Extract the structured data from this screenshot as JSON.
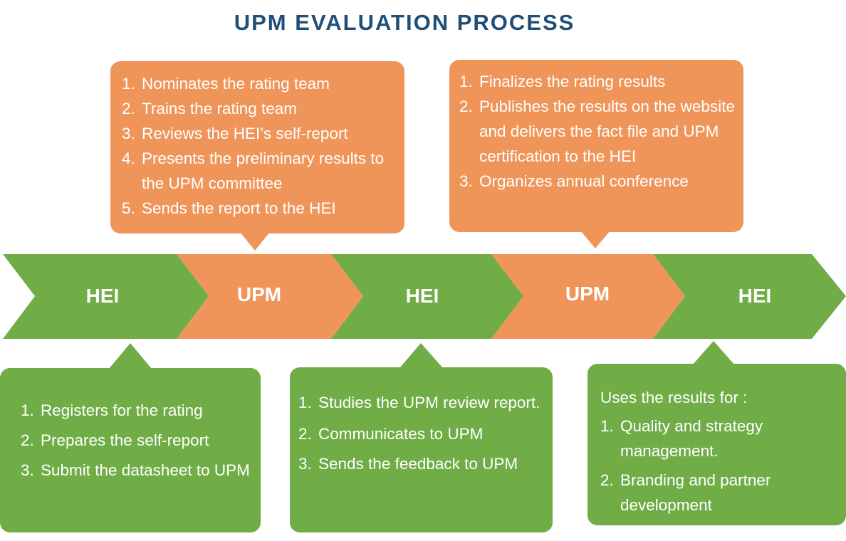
{
  "title": "UPM EVALUATION PROCESS",
  "colors": {
    "title": "#1f4e79",
    "green": "#70ad47",
    "orange": "#f0955a",
    "text": "#ffffff"
  },
  "steps": [
    {
      "label": "HEI",
      "color": "green"
    },
    {
      "label": "UPM",
      "color": "orange"
    },
    {
      "label": "HEI",
      "color": "green"
    },
    {
      "label": "UPM",
      "color": "orange"
    },
    {
      "label": "HEI",
      "color": "green"
    }
  ],
  "callouts": {
    "upm1": {
      "items": [
        "1. Nominates the rating team",
        "2. Trains the rating team",
        "3. Reviews the HEI’s self-report",
        "4. Presents the preliminary results to the UPM committee",
        "5. Sends the report to the HEI"
      ]
    },
    "upm2": {
      "items": [
        "1. Finalizes the rating results",
        "2. Publishes the results on the website and delivers the fact file and UPM certification to the HEI",
        "3. Organizes annual conference"
      ]
    },
    "hei1": {
      "items": [
        "1. Registers for the rating",
        "2. Prepares the self-report",
        "3. Submit the datasheet to UPM"
      ]
    },
    "hei2": {
      "items": [
        "1. Studies the UPM review report.",
        "2. Communicates to UPM",
        "3. Sends the feedback to UPM"
      ]
    },
    "hei3": {
      "intro": "Uses the results for :",
      "items": [
        "1. Quality and strategy management.",
        "2. Branding and partner development"
      ]
    }
  }
}
